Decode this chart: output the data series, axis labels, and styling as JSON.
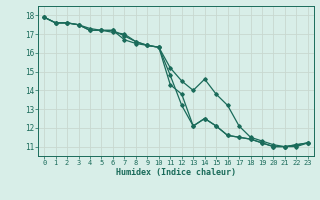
{
  "xlabel": "Humidex (Indice chaleur)",
  "xlim": [
    -0.5,
    23.5
  ],
  "ylim": [
    10.5,
    18.5
  ],
  "xticks": [
    0,
    1,
    2,
    3,
    4,
    5,
    6,
    7,
    8,
    9,
    10,
    11,
    12,
    13,
    14,
    15,
    16,
    17,
    18,
    19,
    20,
    21,
    22,
    23
  ],
  "yticks": [
    11,
    12,
    13,
    14,
    15,
    16,
    17,
    18
  ],
  "bg_color": "#d8eee8",
  "plot_bg_color": "#d8eee8",
  "line_color": "#1a6b5a",
  "grid_color": "#c8d8d0",
  "line1_x": [
    0,
    1,
    2,
    3,
    4,
    5,
    6,
    7,
    8,
    9,
    10,
    11,
    12,
    13,
    14,
    15,
    16,
    17,
    18,
    19,
    20,
    21,
    22,
    23
  ],
  "line1_y": [
    17.9,
    17.6,
    17.6,
    17.5,
    17.2,
    17.2,
    17.2,
    16.9,
    16.6,
    16.4,
    16.3,
    14.3,
    13.8,
    12.1,
    12.5,
    12.1,
    11.6,
    11.5,
    11.4,
    11.2,
    11.0,
    11.0,
    11.1,
    11.2
  ],
  "line2_x": [
    0,
    1,
    2,
    3,
    4,
    5,
    6,
    7,
    8,
    9,
    10,
    11,
    12,
    13,
    14,
    15,
    16,
    17,
    18,
    19,
    20,
    21,
    22,
    23
  ],
  "line2_y": [
    17.9,
    17.6,
    17.6,
    17.5,
    17.2,
    17.2,
    17.2,
    16.7,
    16.5,
    16.4,
    16.3,
    14.8,
    13.2,
    12.1,
    12.5,
    12.1,
    11.6,
    11.5,
    11.4,
    11.2,
    11.0,
    11.0,
    11.1,
    11.2
  ],
  "line3_x": [
    0,
    1,
    2,
    3,
    4,
    5,
    6,
    7,
    8,
    9,
    10,
    11,
    12,
    13,
    14,
    15,
    16,
    17,
    18,
    19,
    20,
    21,
    22,
    23
  ],
  "line3_y": [
    17.9,
    17.6,
    17.6,
    17.5,
    17.3,
    17.2,
    17.1,
    17.0,
    16.6,
    16.4,
    16.3,
    15.2,
    14.5,
    14.0,
    14.6,
    13.8,
    13.2,
    12.1,
    11.5,
    11.3,
    11.1,
    11.0,
    11.0,
    11.2
  ],
  "tick_fontsize": 5,
  "xlabel_fontsize": 6,
  "label_color": "#1a6b5a"
}
